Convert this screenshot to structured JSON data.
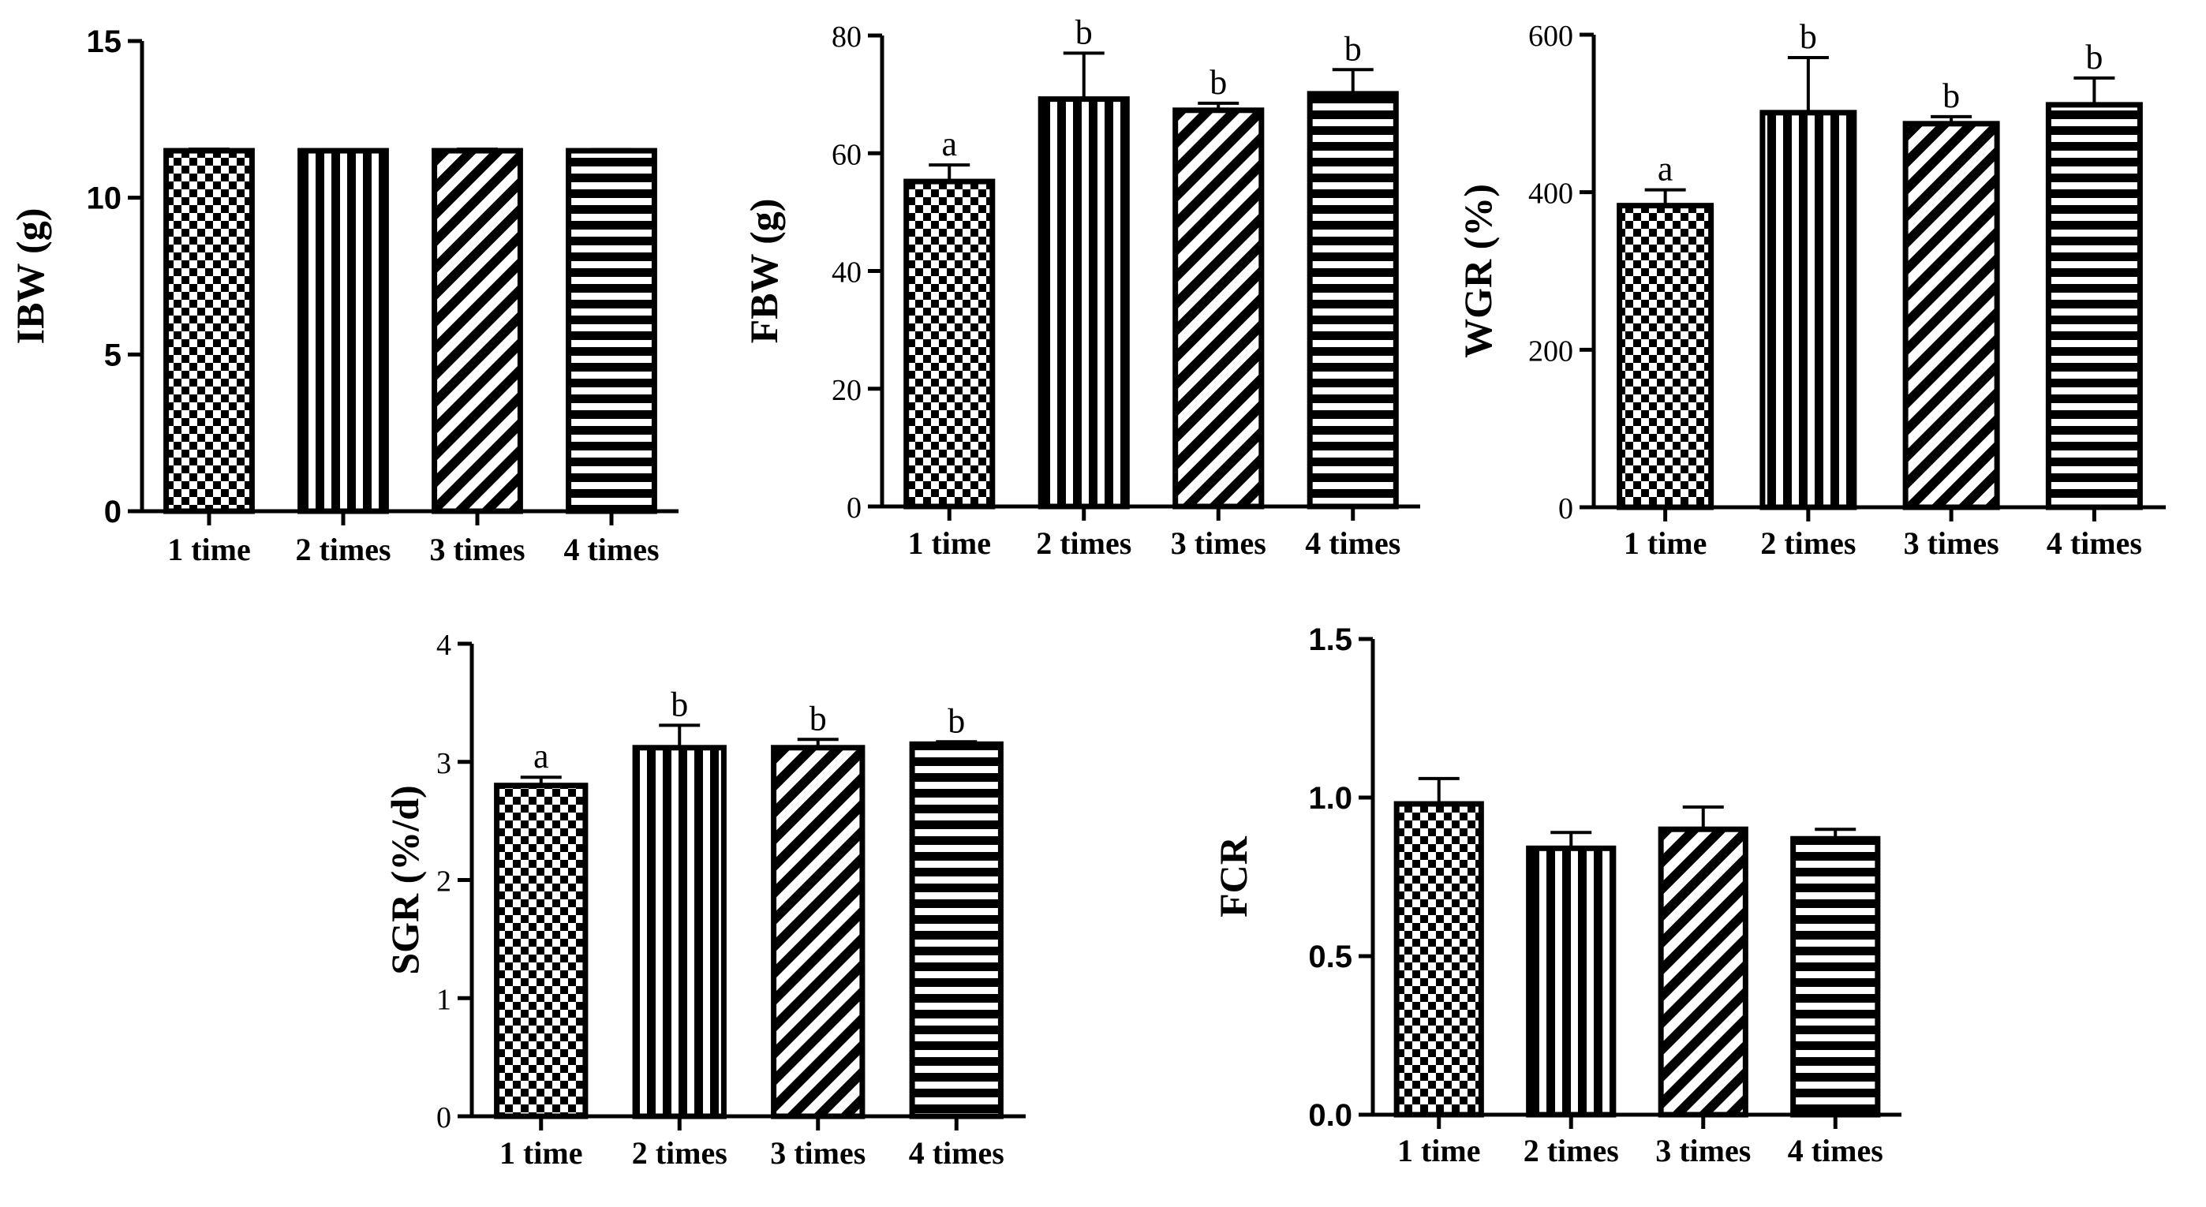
{
  "figure": {
    "categories": [
      "1 time",
      "2 times",
      "3 times",
      "4 times"
    ]
  },
  "chart_data": [
    {
      "id": "ibw",
      "type": "bar",
      "ylabel": "IBW (g)",
      "categories": [
        "1 time",
        "2 times",
        "3 times",
        "4 times"
      ],
      "values": [
        11.5,
        11.5,
        11.5,
        11.5
      ],
      "errors": [
        0.05,
        0.03,
        0.05,
        0.04
      ],
      "ylim": [
        0,
        15
      ],
      "yticks": [
        0,
        5,
        10,
        15
      ],
      "ytick_labels": [
        "0",
        "5",
        "10",
        "15"
      ],
      "significance": [
        "",
        "",
        "",
        ""
      ]
    },
    {
      "id": "fbw",
      "type": "bar",
      "ylabel": "FBW (g)",
      "categories": [
        "1 time",
        "2 times",
        "3 times",
        "4 times"
      ],
      "values": [
        55.2,
        69.2,
        67.3,
        70.1
      ],
      "errors": [
        2.8,
        7.8,
        1.2,
        4.1
      ],
      "ylim": [
        0,
        80
      ],
      "yticks": [
        0,
        20,
        40,
        60,
        80
      ],
      "ytick_labels": [
        "0",
        "20",
        "40",
        "60",
        "80"
      ],
      "significance": [
        "a",
        "b",
        "b",
        "b"
      ]
    },
    {
      "id": "wgr",
      "type": "bar",
      "ylabel": "WGR (%)",
      "categories": [
        "1 time",
        "2 times",
        "3 times",
        "4 times"
      ],
      "values": [
        383,
        501,
        487,
        511
      ],
      "errors": [
        20,
        70,
        9,
        34
      ],
      "ylim": [
        0,
        600
      ],
      "yticks": [
        0,
        200,
        400,
        600
      ],
      "ytick_labels": [
        "0",
        "200",
        "400",
        "600"
      ],
      "significance": [
        "a",
        "b",
        "b",
        "b"
      ]
    },
    {
      "id": "sgr",
      "type": "bar",
      "ylabel": "SGR (%/d)",
      "categories": [
        "1 time",
        "2 times",
        "3 times",
        "4 times"
      ],
      "values": [
        2.8,
        3.12,
        3.12,
        3.15
      ],
      "errors": [
        0.07,
        0.19,
        0.07,
        0.02
      ],
      "ylim": [
        0,
        4
      ],
      "yticks": [
        0,
        1,
        2,
        3,
        4
      ],
      "ytick_labels": [
        "0",
        "1",
        "2",
        "3",
        "4"
      ],
      "significance": [
        "a",
        "b",
        "b",
        "b"
      ]
    },
    {
      "id": "fcr",
      "type": "bar",
      "ylabel": "FCR",
      "categories": [
        "1 time",
        "2 times",
        "3 times",
        "4 times"
      ],
      "values": [
        0.98,
        0.84,
        0.9,
        0.87
      ],
      "errors": [
        0.08,
        0.05,
        0.07,
        0.03
      ],
      "ylim": [
        0,
        1.5
      ],
      "yticks": [
        0,
        0.5,
        1.0,
        1.5
      ],
      "ytick_labels": [
        "0.0",
        "0.5",
        "1.0",
        "1.5"
      ],
      "significance": [
        "",
        "",
        "",
        ""
      ]
    }
  ]
}
